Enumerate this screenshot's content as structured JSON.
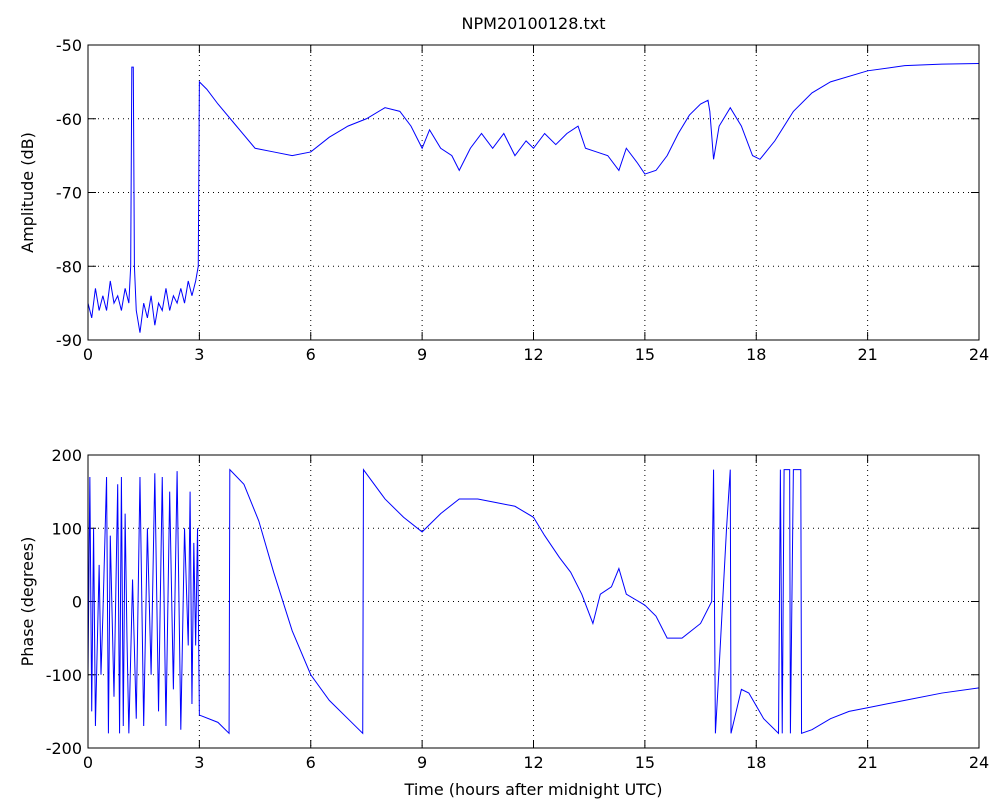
{
  "chart_data": [
    {
      "type": "line",
      "title": "NPM20100128.txt",
      "ylabel": "Amplitude (dB)",
      "x": [
        0,
        0.1,
        0.2,
        0.3,
        0.4,
        0.5,
        0.6,
        0.7,
        0.8,
        0.9,
        1.0,
        1.1,
        1.15,
        1.18,
        1.22,
        1.25,
        1.3,
        1.4,
        1.5,
        1.6,
        1.7,
        1.8,
        1.9,
        2.0,
        2.1,
        2.2,
        2.3,
        2.4,
        2.5,
        2.6,
        2.7,
        2.8,
        2.9,
        2.97,
        3.0,
        3.2,
        3.5,
        4.0,
        4.5,
        5.0,
        5.5,
        6.0,
        6.5,
        7.0,
        7.5,
        8.0,
        8.4,
        8.7,
        9.0,
        9.2,
        9.5,
        9.8,
        10.0,
        10.3,
        10.6,
        10.9,
        11.2,
        11.5,
        11.8,
        12.0,
        12.3,
        12.6,
        12.9,
        13.2,
        13.4,
        13.7,
        14.0,
        14.3,
        14.5,
        14.8,
        15.0,
        15.3,
        15.6,
        15.9,
        16.2,
        16.5,
        16.7,
        16.75,
        16.85,
        17.0,
        17.3,
        17.6,
        17.9,
        18.1,
        18.5,
        19.0,
        19.5,
        20,
        21,
        22,
        23,
        24
      ],
      "series": [
        {
          "color": "#0000ff",
          "values": [
            -85,
            -87,
            -83,
            -86,
            -84,
            -86,
            -82,
            -85,
            -84,
            -86,
            -83,
            -85,
            -80,
            -53,
            -53,
            -80,
            -86,
            -89,
            -85,
            -87,
            -84,
            -88,
            -85,
            -86,
            -83,
            -86,
            -84,
            -85,
            -83,
            -85,
            -82,
            -84,
            -82,
            -80,
            -55,
            -56,
            -58,
            -61,
            -64,
            -64.5,
            -65,
            -64.5,
            -62.5,
            -61,
            -60,
            -58.5,
            -59,
            -61,
            -64,
            -61.5,
            -64,
            -65,
            -67,
            -64,
            -62,
            -64,
            -62,
            -65,
            -63,
            -64,
            -62,
            -63.5,
            -62,
            -61,
            -64,
            -64.5,
            -65,
            -67,
            -64,
            -66,
            -67.5,
            -67,
            -65,
            -62,
            -59.5,
            -58,
            -57.5,
            -59,
            -65.5,
            -61,
            -58.5,
            -61,
            -65,
            -65.5,
            -63,
            -59,
            -56.5,
            -55,
            -53.5,
            -52.8,
            -52.6,
            -52.5
          ]
        }
      ],
      "xlim": [
        0,
        24
      ],
      "xticks": [
        0,
        3,
        6,
        9,
        12,
        15,
        18,
        21,
        24
      ],
      "ylim": [
        -90,
        -50
      ],
      "yticks": [
        -90,
        -80,
        -70,
        -60,
        -50
      ],
      "grid": true
    },
    {
      "type": "line",
      "ylabel": "Phase (degrees)",
      "xlabel": "Time (hours after midnight UTC)",
      "x": [
        0,
        0.05,
        0.1,
        0.15,
        0.2,
        0.3,
        0.35,
        0.4,
        0.5,
        0.55,
        0.6,
        0.7,
        0.8,
        0.85,
        0.9,
        0.95,
        1.0,
        1.05,
        1.1,
        1.2,
        1.3,
        1.4,
        1.5,
        1.6,
        1.7,
        1.8,
        1.9,
        2.0,
        2.1,
        2.2,
        2.3,
        2.4,
        2.5,
        2.6,
        2.7,
        2.75,
        2.8,
        2.85,
        2.9,
        2.95,
        3.0,
        3.5,
        3.8,
        3.82,
        4.2,
        4.6,
        5.0,
        5.5,
        6.0,
        6.5,
        7.0,
        7.4,
        7.42,
        8.0,
        8.5,
        9.0,
        9.5,
        10.0,
        10.5,
        11.0,
        11.5,
        12.0,
        12.3,
        12.7,
        13.0,
        13.3,
        13.6,
        13.8,
        14.1,
        14.3,
        14.5,
        15.0,
        15.3,
        15.6,
        16.0,
        16.5,
        16.8,
        16.85,
        16.9,
        17.0,
        17.2,
        17.3,
        17.32,
        17.6,
        17.8,
        18.2,
        18.6,
        18.65,
        18.7,
        18.75,
        18.9,
        18.92,
        19.0,
        19.2,
        19.22,
        19.5,
        20,
        20.5,
        21,
        22,
        23,
        24
      ],
      "series": [
        {
          "color": "#0000ff",
          "values": [
            -100,
            170,
            -150,
            100,
            -170,
            50,
            -100,
            -20,
            170,
            -180,
            90,
            -130,
            160,
            -180,
            170,
            -170,
            120,
            -50,
            -180,
            30,
            -160,
            170,
            -170,
            100,
            -100,
            175,
            -150,
            170,
            -170,
            150,
            -120,
            178,
            -175,
            100,
            -60,
            150,
            -140,
            80,
            -60,
            100,
            -155,
            -165,
            -180,
            180,
            160,
            110,
            40,
            -40,
            -100,
            -135,
            -160,
            -180,
            180,
            140,
            115,
            95,
            120,
            140,
            140,
            135,
            130,
            115,
            90,
            60,
            40,
            10,
            -30,
            10,
            20,
            45,
            10,
            -5,
            -20,
            -50,
            -50,
            -30,
            0,
            180,
            -180,
            -90,
            100,
            180,
            -180,
            -120,
            -125,
            -160,
            -180,
            180,
            -180,
            180,
            180,
            -180,
            180,
            180,
            -180,
            -175,
            -160,
            -150,
            -145,
            -135,
            -125,
            -118
          ]
        }
      ],
      "xlim": [
        0,
        24
      ],
      "xticks": [
        0,
        3,
        6,
        9,
        12,
        15,
        18,
        21,
        24
      ],
      "ylim": [
        -200,
        200
      ],
      "yticks": [
        -200,
        -100,
        0,
        100,
        200
      ],
      "grid": true
    }
  ]
}
